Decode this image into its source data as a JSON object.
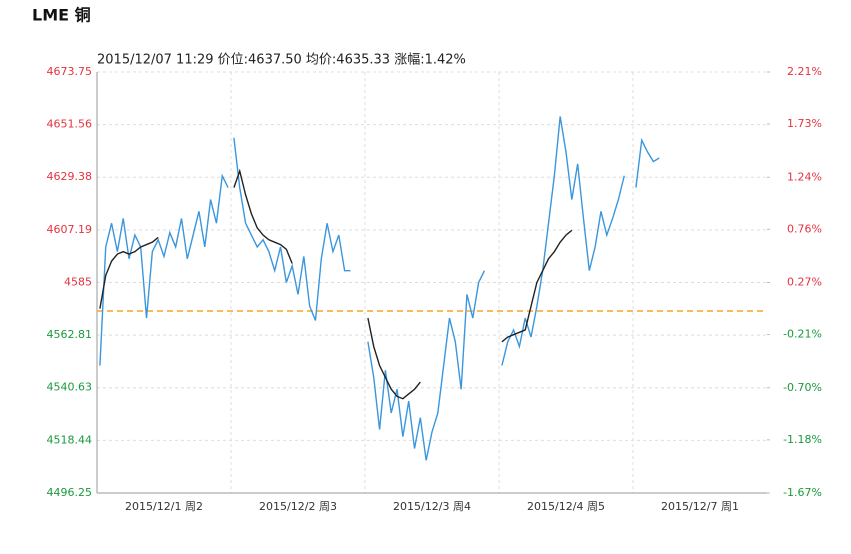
{
  "title": "LME 铜",
  "chart_data": {
    "type": "line",
    "header": "2015/12/07  11:29  价位:4637.50  均价:4635.33  涨幅:1.42%",
    "categories": [
      "2015/12/1 周2",
      "2015/12/2 周3",
      "2015/12/3 周4",
      "2015/12/4 周5",
      "2015/12/7 周1"
    ],
    "ylim": [
      4496.25,
      4673.75
    ],
    "yticks": [
      4496.25,
      4518.44,
      4540.63,
      4562.81,
      4585.0,
      4607.19,
      4629.38,
      4651.56,
      4673.75
    ],
    "y2lim": [
      -1.67,
      2.21
    ],
    "y2ticks": [
      {
        "value": -1.67,
        "label": "-1.67%"
      },
      {
        "value": -1.18,
        "label": "-1.18%"
      },
      {
        "value": -0.7,
        "label": "-0.70%"
      },
      {
        "value": -0.21,
        "label": "-0.21%"
      },
      {
        "value": 0.27,
        "label": "0.27%"
      },
      {
        "value": 0.76,
        "label": "0.76%"
      },
      {
        "value": 1.24,
        "label": "1.24%"
      },
      {
        "value": 1.73,
        "label": "1.73%"
      },
      {
        "value": 2.21,
        "label": "2.21%"
      }
    ],
    "ref_value": 4573,
    "ref_color": "#f5a623",
    "up_color": "#e5323e",
    "down_color": "#1a9a3a",
    "grid": true,
    "price": {
      "color": "#3a96dd",
      "values": [
        [
          4550,
          4600,
          4610,
          4598,
          4612,
          4595,
          4605,
          4600,
          4570,
          4598,
          4603,
          4596,
          4606,
          4600,
          4612,
          4595,
          4605,
          4615,
          4600,
          4620,
          4610,
          4630,
          4625
        ],
        [
          4646,
          4625,
          4610,
          4605,
          4600,
          4603,
          4598,
          4590,
          4600,
          4585,
          4592,
          4580,
          4596,
          4575,
          4569,
          4595,
          4610,
          4598,
          4605,
          4590,
          4590
        ],
        [
          4560,
          4545,
          4523,
          4548,
          4530,
          4540,
          4520,
          4535,
          4515,
          4528,
          4510,
          4522,
          4530,
          4550,
          4570,
          4560,
          4540,
          4580,
          4570,
          4585,
          4590
        ],
        [
          4550,
          4560,
          4565,
          4558,
          4570,
          4562,
          4575,
          4590,
          4610,
          4630,
          4655,
          4640,
          4620,
          4635,
          4612,
          4590,
          4600,
          4615,
          4605,
          4612,
          4620,
          4630
        ],
        [
          4625,
          4645,
          4640,
          4636,
          4637.5
        ]
      ]
    },
    "average": {
      "color": "#222222",
      "values": [
        [
          4574,
          4588,
          4594,
          4597,
          4598,
          4597,
          4598,
          4600,
          4601,
          4602,
          4604
        ],
        [
          4625,
          4632,
          4622,
          4614,
          4608,
          4605,
          4603,
          4602,
          4601,
          4599,
          4593
        ],
        [
          4570,
          4558,
          4550,
          4545,
          4540,
          4537,
          4536,
          4538,
          4540,
          4543
        ],
        [
          4560,
          4562,
          4563,
          4564,
          4565,
          4575,
          4585,
          4590,
          4595,
          4598,
          4602,
          4605,
          4607
        ],
        []
      ]
    }
  }
}
